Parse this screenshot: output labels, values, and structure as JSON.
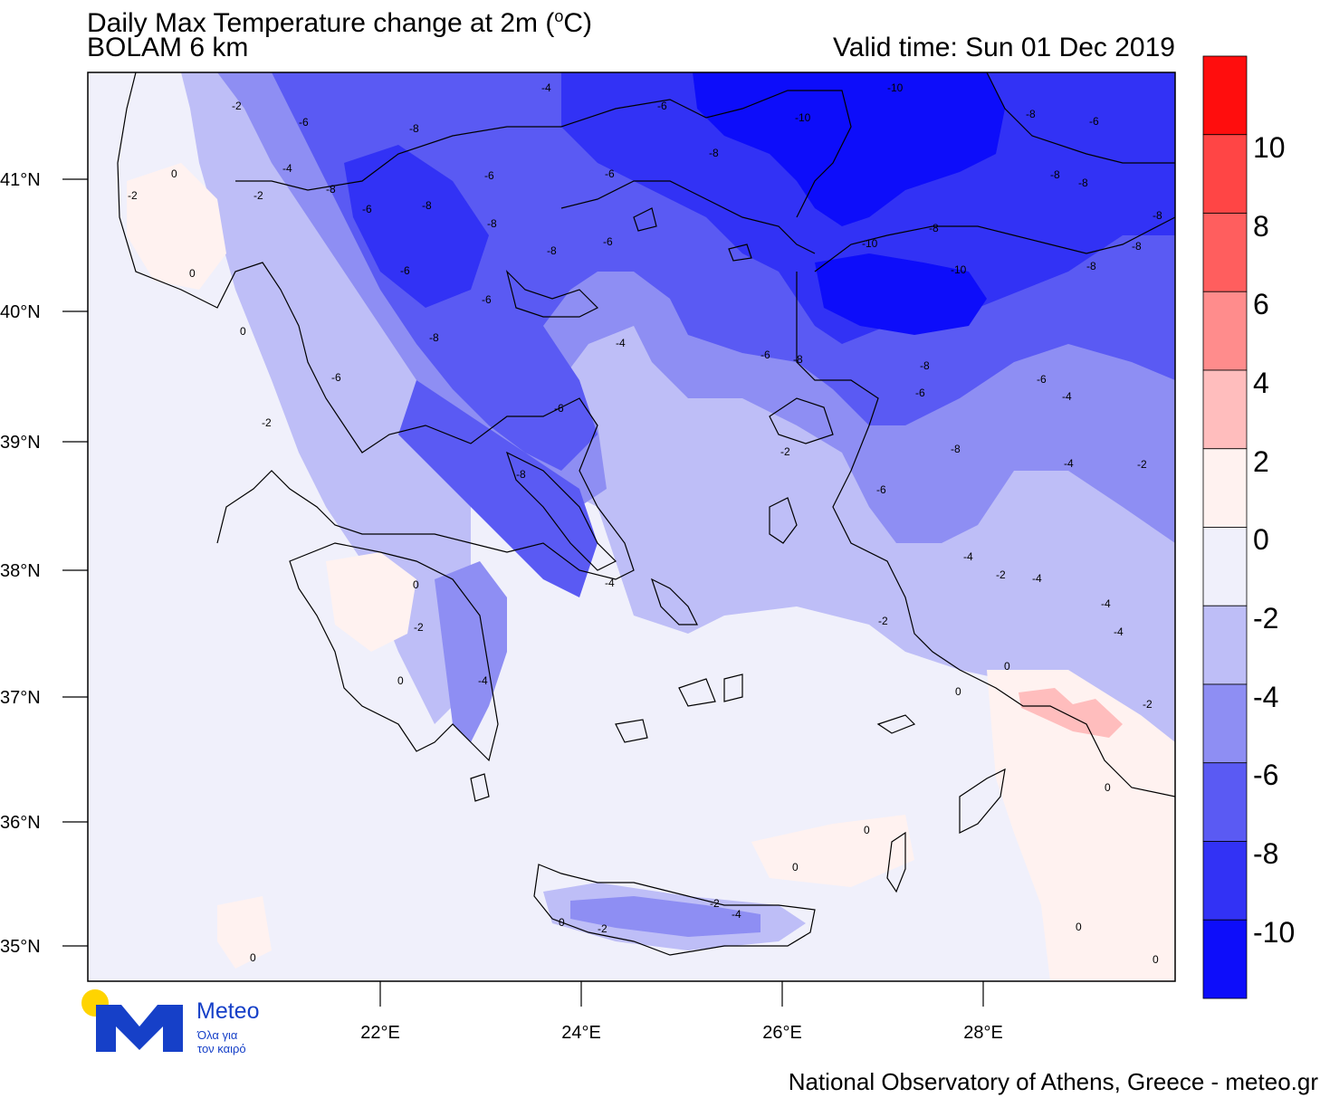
{
  "title_prefix": "Daily Max Temperature change at 2m (",
  "title_degree": "o",
  "title_suffix": "C)",
  "subtitle": "BOLAM 6 km",
  "valid_time": "Valid time: Sun 01 Dec 2019",
  "latitude_labels": [
    "41°N",
    "40°N",
    "39°N",
    "38°N",
    "37°N",
    "36°N",
    "35°N"
  ],
  "longitude_labels": [
    "22°E",
    "24°E",
    "26°E",
    "28°E"
  ],
  "colorbar": {
    "labels": [
      "10",
      "8",
      "6",
      "4",
      "2",
      "0",
      "-2",
      "-4",
      "-6",
      "-8",
      "-10"
    ],
    "colors": [
      "#ff0d0d",
      "#ff4545",
      "#ff5e5e",
      "#ff8c8c",
      "#ffbdbd",
      "#fff2f0",
      "#f0f0fb",
      "#bebef7",
      "#8e8ef3",
      "#5a5af3",
      "#3232f5",
      "#0d0dfa"
    ]
  },
  "contour_labels": [
    "-2",
    "-6",
    "-8",
    "-4",
    "-6",
    "-10",
    "-8",
    "-6",
    "0",
    "-2",
    "-4",
    "-2",
    "-8",
    "-6",
    "-6",
    "-8",
    "-8",
    "-6",
    "-6",
    "-8",
    "-8",
    "-6",
    "-10",
    "-8",
    "-8",
    "-8",
    "-8",
    "-10",
    "-8",
    "-10",
    "-8",
    "0",
    "-6",
    "-4",
    "-6",
    "-8",
    "0",
    "-6",
    "-8",
    "-4",
    "-6",
    "-2",
    "-6",
    "-4",
    "-6",
    "-8",
    "-2",
    "-8",
    "-4",
    "-2",
    "-4",
    "-6",
    "-8",
    "0",
    "-2",
    "-4",
    "-2",
    "-4",
    "-2",
    "-4",
    "-4",
    "-2",
    "0",
    "0",
    "0",
    "0",
    "0",
    "0",
    "0",
    "0",
    "-4",
    "-2",
    "-2"
  ],
  "logo": {
    "brand": "Meteo",
    "tagline_line1": "Όλα για",
    "tagline_line2": "τον καιρό"
  },
  "footer": "National Observatory of Athens, Greece - meteo.gr"
}
